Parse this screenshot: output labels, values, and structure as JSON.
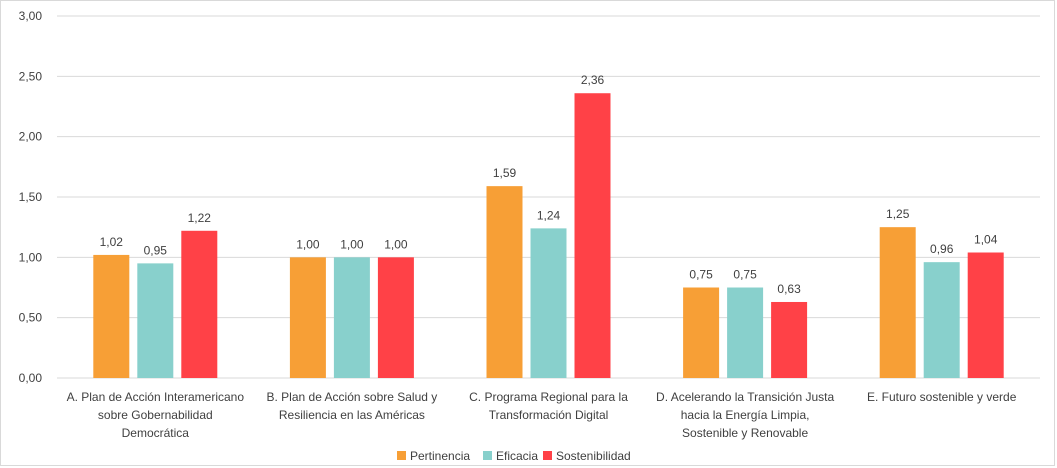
{
  "chart_data": {
    "type": "bar",
    "title": "",
    "xlabel": "",
    "ylabel": "",
    "ylim": [
      0,
      3
    ],
    "yticks": [
      0,
      0.5,
      1,
      1.5,
      2,
      2.5,
      3
    ],
    "ytick_labels": [
      "0,00",
      "0,50",
      "1,00",
      "1,50",
      "2,00",
      "2,50",
      "3,00"
    ],
    "grid": true,
    "legend_position": "bottom",
    "categories": [
      [
        "A. Plan de Acción Interamericano",
        "sobre Gobernabilidad",
        "Democrática"
      ],
      [
        "B. Plan de Acción sobre Salud y",
        "Resiliencia en las Américas"
      ],
      [
        "C. Programa Regional para la",
        "Transformación Digital"
      ],
      [
        "D. Acelerando la Transición Justa",
        "hacia la Energía Limpia,",
        "Sostenible y Renovable"
      ],
      [
        "E. Futuro sostenible y verde"
      ]
    ],
    "series": [
      {
        "name": "Pertinencia",
        "color": "#F79F36",
        "values": [
          1.02,
          1.0,
          1.59,
          0.75,
          1.25
        ],
        "labels": [
          "1,02",
          "1,00",
          "1,59",
          "0,75",
          "1,25"
        ]
      },
      {
        "name": "Eficacia",
        "color": "#88D0CC",
        "values": [
          0.95,
          1.0,
          1.24,
          0.75,
          0.96
        ],
        "labels": [
          "0,95",
          "1,00",
          "1,24",
          "0,75",
          "0,96"
        ]
      },
      {
        "name": "Sostenibilidad",
        "color": "#FF4147",
        "values": [
          1.22,
          1.0,
          2.36,
          0.63,
          1.04
        ],
        "labels": [
          "1,22",
          "1,00",
          "2,36",
          "0,63",
          "1,04"
        ]
      }
    ]
  }
}
